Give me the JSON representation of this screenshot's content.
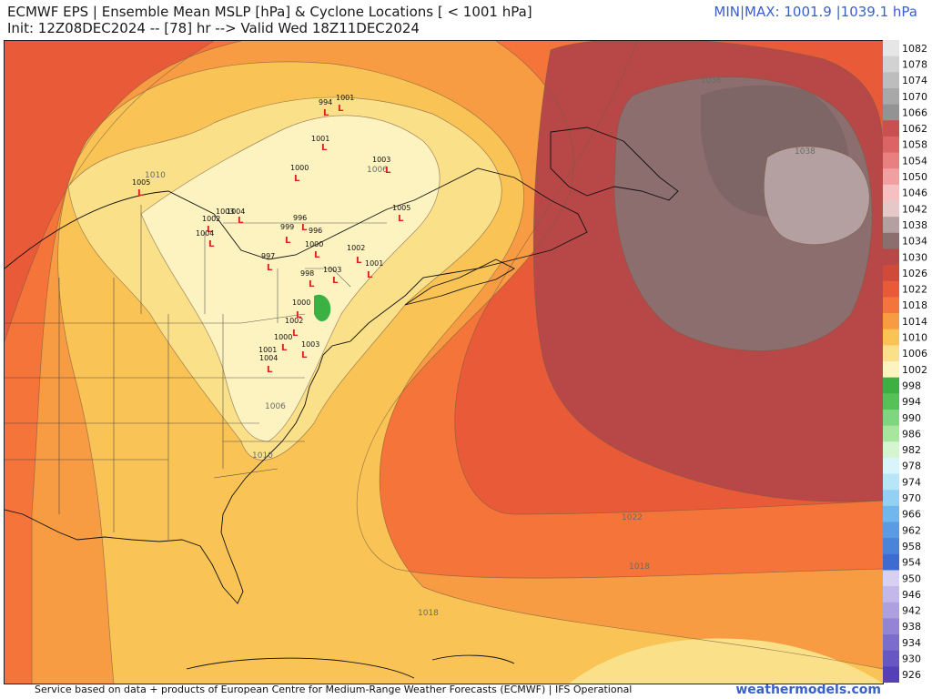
{
  "header": {
    "title_line1": "ECMWF EPS | Ensemble Mean MSLP [hPa] & Cyclone Locations [ < 1001 hPa]",
    "title_line2": "Init: 12Z08DEC2024 -- [78] hr --> Valid Wed 18Z11DEC2024",
    "minmax": "MIN|MAX: 1001.9 |1039.1 hPa"
  },
  "footer": {
    "credit": "Service based on data + products of European Centre for Medium-Range Weather Forecasts (ECMWF) | IFS Operational",
    "brand": "weathermodels.com"
  },
  "isobar_labels": [
    {
      "id": "iso-1036",
      "text": "1036"
    },
    {
      "id": "iso-1038",
      "text": "1038"
    },
    {
      "id": "iso-1010-north",
      "text": "1010"
    },
    {
      "id": "iso-1006-quebec",
      "text": "1006"
    },
    {
      "id": "iso-1006-carolinas",
      "text": "1006"
    },
    {
      "id": "iso-1010-georgia",
      "text": "1010"
    },
    {
      "id": "iso-1022",
      "text": "1022"
    },
    {
      "id": "iso-1018-east",
      "text": "1018"
    },
    {
      "id": "iso-1018-south",
      "text": "1018"
    }
  ],
  "cyclone_labels": [
    {
      "id": "low-994",
      "text": "994"
    },
    {
      "id": "low-1001-a",
      "text": "1001"
    },
    {
      "id": "low-1001-b",
      "text": "1001"
    },
    {
      "id": "low-1000-a",
      "text": "1000"
    },
    {
      "id": "low-1005-west",
      "text": "1005"
    },
    {
      "id": "low-1003-a",
      "text": "1003"
    },
    {
      "id": "low-1004-a",
      "text": "1004"
    },
    {
      "id": "low-1002-a",
      "text": "1002"
    },
    {
      "id": "low-996-a",
      "text": "996"
    },
    {
      "id": "low-999",
      "text": "999"
    },
    {
      "id": "low-996-b",
      "text": "996"
    },
    {
      "id": "low-1004-b",
      "text": "1004"
    },
    {
      "id": "low-997",
      "text": "997"
    },
    {
      "id": "low-1000-b",
      "text": "1000"
    },
    {
      "id": "low-1005-east",
      "text": "1005"
    },
    {
      "id": "low-1003-b",
      "text": "1003"
    },
    {
      "id": "low-1002-b",
      "text": "1002"
    },
    {
      "id": "low-1001-c",
      "text": "1001"
    },
    {
      "id": "low-998",
      "text": "998"
    },
    {
      "id": "low-1003-c",
      "text": "1003"
    },
    {
      "id": "low-1000-c",
      "text": "1000"
    },
    {
      "id": "low-1002-c",
      "text": "1002"
    },
    {
      "id": "low-1000-d",
      "text": "1000"
    },
    {
      "id": "low-1004-c",
      "text": "1004"
    },
    {
      "id": "low-1001-d",
      "text": "1001"
    },
    {
      "id": "low-1003-d",
      "text": "1003"
    }
  ],
  "colorbar": {
    "levels": [
      "1082",
      "1078",
      "1074",
      "1070",
      "1066",
      "1062",
      "1058",
      "1054",
      "1050",
      "1046",
      "1042",
      "1038",
      "1034",
      "1030",
      "1026",
      "1022",
      "1018",
      "1014",
      "1010",
      "1006",
      "1002",
      "998",
      "994",
      "990",
      "986",
      "982",
      "978",
      "974",
      "970",
      "966",
      "962",
      "958",
      "954",
      "950",
      "946",
      "942",
      "938",
      "934",
      "930",
      "926"
    ],
    "colors": [
      "#e6e6e6",
      "#d2d2d2",
      "#bdbdbd",
      "#a8a8a8",
      "#939393",
      "#c85050",
      "#dc6464",
      "#e88080",
      "#f0a0a0",
      "#f5c0c0",
      "#e6c8c8",
      "#b4a0a0",
      "#8c6e6e",
      "#b84848",
      "#d04a3a",
      "#e85a38",
      "#f4743a",
      "#f79c42",
      "#f9c455",
      "#fbe08a",
      "#fdf3c0",
      "#3cb043",
      "#54c257",
      "#7ed67e",
      "#a8e6a0",
      "#d4f5d0",
      "#d8f5fb",
      "#b6e6f7",
      "#93d1f2",
      "#6fb7ec",
      "#5b9be3",
      "#4a84da",
      "#3d6bd0",
      "#d8d0f0",
      "#c4b8ea",
      "#ad9fe0",
      "#9484d6",
      "#7c6ccc",
      "#6857c2",
      "#5640b8"
    ]
  }
}
